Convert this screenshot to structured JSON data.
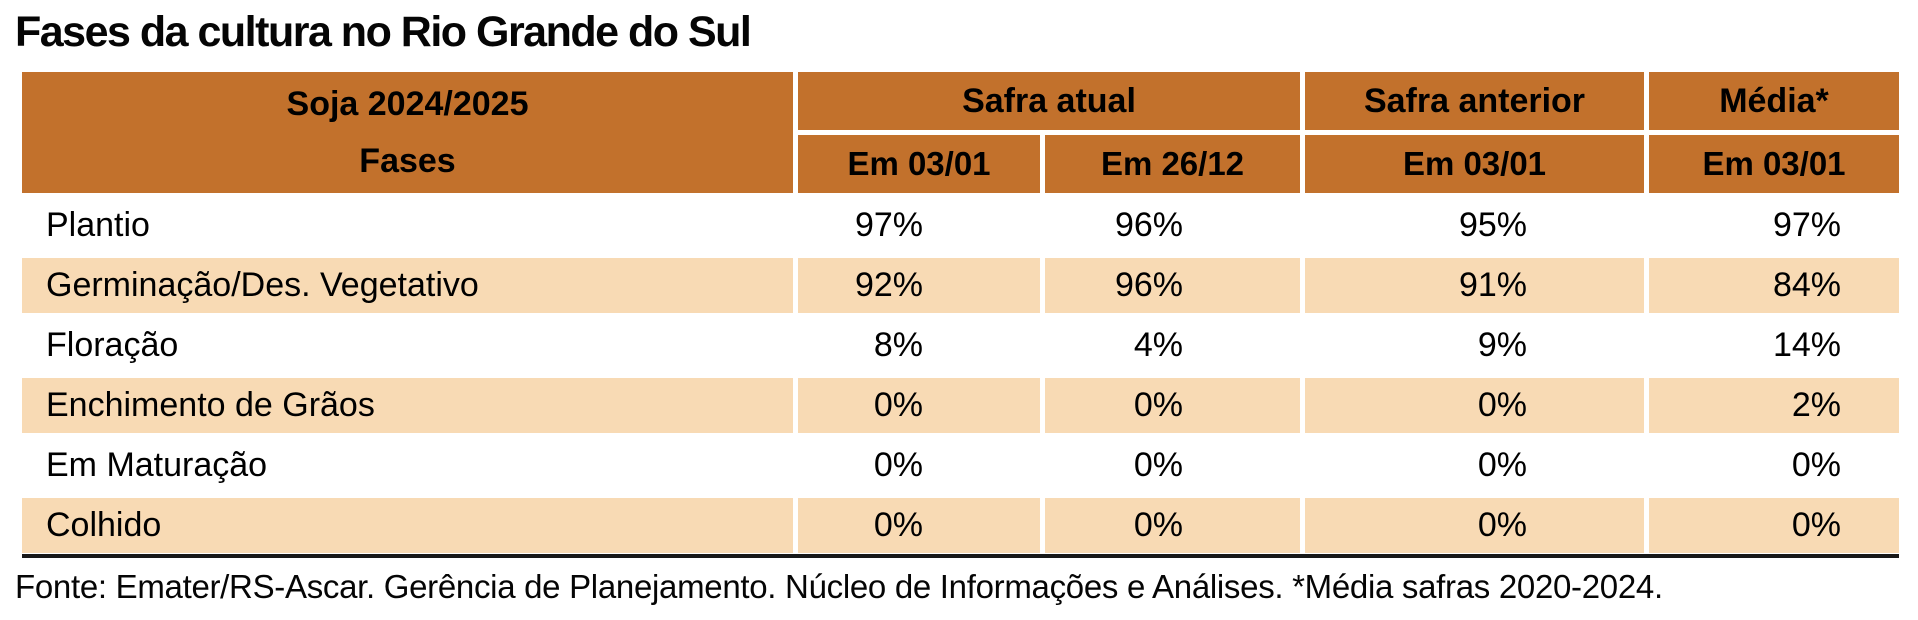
{
  "title": "Fases da cultura no Rio Grande do Sul",
  "header": {
    "corner_top": "Soja 2024/2025",
    "corner_bottom": "Fases",
    "group_safra_atual": "Safra atual",
    "group_safra_anterior": "Safra anterior",
    "group_media": "Média*",
    "sub_dates": [
      "Em 03/01",
      "Em 26/12",
      "Em 03/01",
      "Em 03/01"
    ]
  },
  "chart_data": {
    "type": "table",
    "title": "Fases da cultura no Rio Grande do Sul",
    "columns": [
      "Fases",
      "Safra atual — Em 03/01",
      "Safra atual — Em 26/12",
      "Safra anterior — Em 03/01",
      "Média* — Em 03/01"
    ],
    "rows": [
      [
        "Plantio",
        "97%",
        "96%",
        "95%",
        "97%"
      ],
      [
        "Germinação/Des. Vegetativo",
        "92%",
        "96%",
        "91%",
        "84%"
      ],
      [
        "Floração",
        "8%",
        "4%",
        "9%",
        "14%"
      ],
      [
        "Enchimento de Grãos",
        "0%",
        "0%",
        "0%",
        "2%"
      ],
      [
        "Em Maturação",
        "0%",
        "0%",
        "0%",
        "0%"
      ],
      [
        "Colhido",
        "0%",
        "0%",
        "0%",
        "0%"
      ]
    ],
    "source_note": "Fonte: Emater/RS-Ascar. Gerência de Planejamento. Núcleo de Informações e Análises. *Média safras 2020-2024."
  },
  "footer_note": "Fonte: Emater/RS-Ascar. Gerência de Planejamento. Núcleo de Informações e Análises. *Média safras 2020-2024.",
  "colors": {
    "header_bg": "#C2712C",
    "row_band_bg": "#F8DAB4",
    "bottom_rule": "#181818",
    "text": "#000000"
  }
}
